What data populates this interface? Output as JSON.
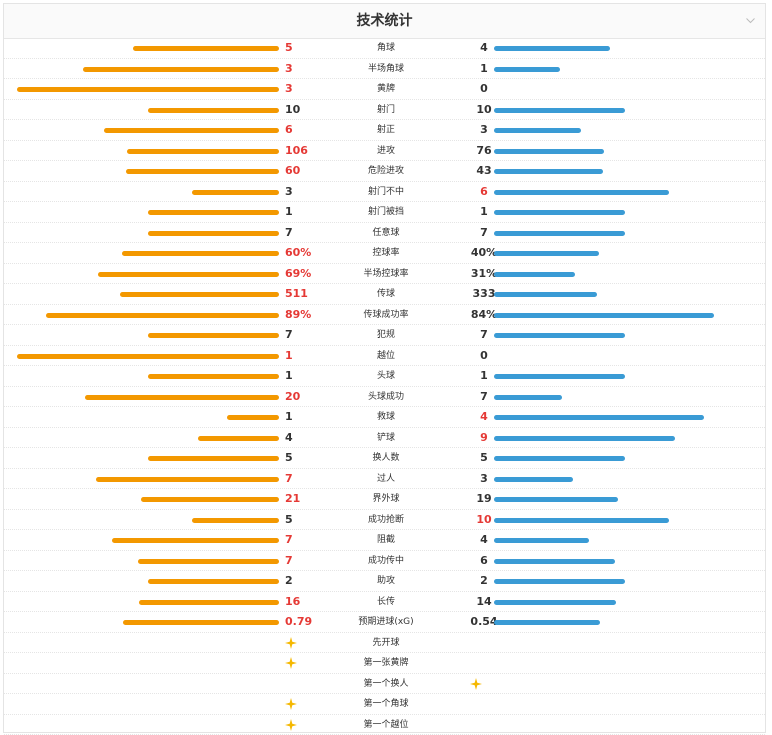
{
  "header": {
    "title": "技术统计"
  },
  "colors": {
    "home_bar": "#f39800",
    "away_bar": "#3a9bd5",
    "highlight": "#e53935",
    "star": "#f5b800"
  },
  "stats": [
    {
      "name": "角球",
      "home": "5",
      "away": "4",
      "home_ratio": 0.556,
      "away_ratio": 0.444
    },
    {
      "name": "半场角球",
      "home": "3",
      "away": "1",
      "home_ratio": 0.75,
      "away_ratio": 0.25
    },
    {
      "name": "黄牌",
      "home": "3",
      "away": "0",
      "home_ratio": 1.0,
      "away_ratio": 0.0
    },
    {
      "name": "射门",
      "home": "10",
      "away": "10",
      "home_ratio": 0.5,
      "away_ratio": 0.5
    },
    {
      "name": "射正",
      "home": "6",
      "away": "3",
      "home_ratio": 0.667,
      "away_ratio": 0.333
    },
    {
      "name": "进攻",
      "home": "106",
      "away": "76",
      "home_ratio": 0.582,
      "away_ratio": 0.418
    },
    {
      "name": "危险进攻",
      "home": "60",
      "away": "43",
      "home_ratio": 0.583,
      "away_ratio": 0.417
    },
    {
      "name": "射门不中",
      "home": "3",
      "away": "6",
      "home_ratio": 0.333,
      "away_ratio": 0.667
    },
    {
      "name": "射门被挡",
      "home": "1",
      "away": "1",
      "home_ratio": 0.5,
      "away_ratio": 0.5
    },
    {
      "name": "任意球",
      "home": "7",
      "away": "7",
      "home_ratio": 0.5,
      "away_ratio": 0.5
    },
    {
      "name": "控球率",
      "home": "60%",
      "away": "40%",
      "home_ratio": 0.6,
      "away_ratio": 0.4
    },
    {
      "name": "半场控球率",
      "home": "69%",
      "away": "31%",
      "home_ratio": 0.69,
      "away_ratio": 0.31
    },
    {
      "name": "传球",
      "home": "511",
      "away": "333",
      "home_ratio": 0.605,
      "away_ratio": 0.395
    },
    {
      "name": "传球成功率",
      "home": "89%",
      "away": "84%",
      "home_ratio": 0.89,
      "away_ratio": 0.84
    },
    {
      "name": "犯规",
      "home": "7",
      "away": "7",
      "home_ratio": 0.5,
      "away_ratio": 0.5
    },
    {
      "name": "越位",
      "home": "1",
      "away": "0",
      "home_ratio": 1.0,
      "away_ratio": 0.0
    },
    {
      "name": "头球",
      "home": "1",
      "away": "1",
      "home_ratio": 0.5,
      "away_ratio": 0.5
    },
    {
      "name": "头球成功",
      "home": "20",
      "away": "7",
      "home_ratio": 0.741,
      "away_ratio": 0.259
    },
    {
      "name": "救球",
      "home": "1",
      "away": "4",
      "home_ratio": 0.2,
      "away_ratio": 0.8
    },
    {
      "name": "铲球",
      "home": "4",
      "away": "9",
      "home_ratio": 0.308,
      "away_ratio": 0.692
    },
    {
      "name": "换人数",
      "home": "5",
      "away": "5",
      "home_ratio": 0.5,
      "away_ratio": 0.5
    },
    {
      "name": "过人",
      "home": "7",
      "away": "3",
      "home_ratio": 0.7,
      "away_ratio": 0.3
    },
    {
      "name": "界外球",
      "home": "21",
      "away": "19",
      "home_ratio": 0.525,
      "away_ratio": 0.475
    },
    {
      "name": "成功抢断",
      "home": "5",
      "away": "10",
      "home_ratio": 0.333,
      "away_ratio": 0.667
    },
    {
      "name": "阻截",
      "home": "7",
      "away": "4",
      "home_ratio": 0.636,
      "away_ratio": 0.364
    },
    {
      "name": "成功传中",
      "home": "7",
      "away": "6",
      "home_ratio": 0.538,
      "away_ratio": 0.462
    },
    {
      "name": "助攻",
      "home": "2",
      "away": "2",
      "home_ratio": 0.5,
      "away_ratio": 0.5
    },
    {
      "name": "长传",
      "home": "16",
      "away": "14",
      "home_ratio": 0.533,
      "away_ratio": 0.467
    },
    {
      "name": "预期进球(xG)",
      "home": "0.79",
      "away": "0.54",
      "home_ratio": 0.594,
      "away_ratio": 0.406
    }
  ],
  "events": [
    {
      "name": "先开球",
      "side": "home",
      "icon": "star-icon"
    },
    {
      "name": "第一张黄牌",
      "side": "home",
      "icon": "star-icon"
    },
    {
      "name": "第一个换人",
      "side": "away",
      "icon": "star-icon"
    },
    {
      "name": "第一个角球",
      "side": "home",
      "icon": "star-icon"
    },
    {
      "name": "第一个越位",
      "side": "home",
      "icon": "star-icon"
    }
  ]
}
